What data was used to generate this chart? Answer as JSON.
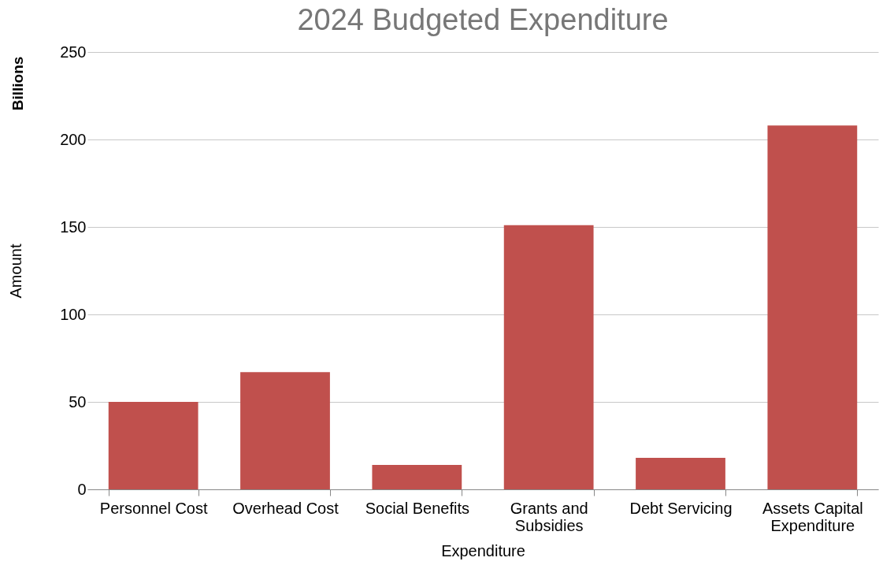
{
  "chart_data": {
    "type": "bar",
    "title": "2024 Budgeted Expenditure",
    "xlabel": "Expenditure",
    "ylabel": "Amount",
    "annotations": [
      "Billions"
    ],
    "categories": [
      "Personnel Cost",
      "Overhead Cost",
      "Social Benefits",
      "Grants and Subsidies",
      "Debt Servicing",
      "Assets Capital Expenditure"
    ],
    "values": [
      50,
      67,
      14,
      151,
      18,
      208
    ],
    "color": "#c0504d",
    "ylim": [
      0,
      250
    ],
    "yticks": [
      0,
      50,
      100,
      150,
      200,
      250
    ],
    "grid": "y"
  }
}
